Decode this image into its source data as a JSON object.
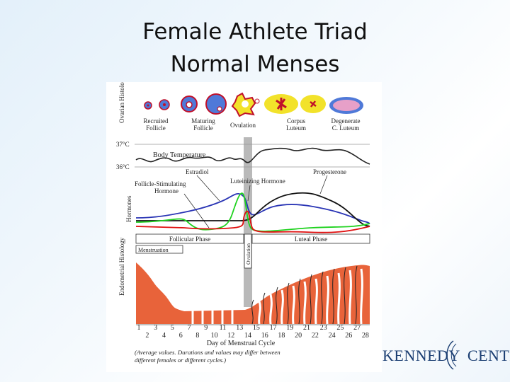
{
  "slide": {
    "title_line1": "Female Athlete Triad",
    "title_line2": "Normal Menses"
  },
  "figure": {
    "ovarian_axis_label": "Ovarian Histology",
    "ovarian_stages": [
      "Recruited Follicle",
      "Maturing Follicle",
      "Ovulation",
      "Corpus Luteum",
      "Degenerate C. Luteum"
    ],
    "temp_high": "37°C",
    "temp_low": "36°C",
    "body_temperature_label": "Body Temperature",
    "hormones_axis_label": "Hormones",
    "estradiol_label": "Estradiol",
    "progesterone_label": "Progesterone",
    "fsh_label_line1": "Follicle-Stimulating",
    "fsh_label_line2": "Hormone",
    "lh_label": "Luteinizing Hormone",
    "follicular_phase": "Follicular Phase",
    "luteal_phase": "Luteal Phase",
    "menstruation": "Menstruation",
    "ovulation_band": "Ovulation",
    "endometrial_axis_label": "Endometrial Histology",
    "days_top_row": [
      "1",
      "3",
      "5",
      "7",
      "9",
      "11",
      "13",
      "15",
      "17",
      "19",
      "21",
      "23",
      "25",
      "27"
    ],
    "days_bottom_row": [
      "2",
      "4",
      "6",
      "8",
      "10",
      "12",
      "14",
      "16",
      "18",
      "20",
      "22",
      "24",
      "26",
      "28"
    ],
    "x_axis_label": "Day of Menstrual Cycle",
    "footnote_line1": "(Average values. Durations and values may differ between",
    "footnote_line2": "different females or different cycles.)"
  },
  "logo": {
    "brand_part1": "KENNEDY",
    "brand_part2": "CENTER"
  },
  "colors": {
    "estradiol": "#2a35b5",
    "progesterone": "#111111",
    "fsh": "#1fd21f",
    "lh": "#e01010",
    "endometrium": "#e8633a",
    "ovulation_band": "#b9b9b9",
    "follicle": "#4f79d8",
    "corpus_luteum": "#f2e22a"
  }
}
